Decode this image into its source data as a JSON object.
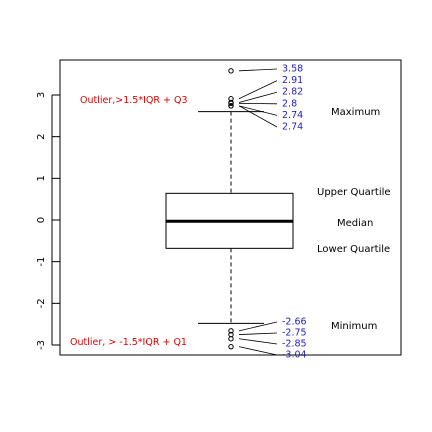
{
  "chart_data": {
    "type": "box",
    "title": "",
    "xlabel": "",
    "ylabel": "",
    "ylim": [
      -3.1,
      3.7
    ],
    "yticks": [
      -3,
      -2,
      -1,
      0,
      1,
      2,
      3
    ],
    "ytick_labels": [
      "-3",
      "-2",
      "-1",
      "0",
      "1",
      "2",
      "3"
    ],
    "box": {
      "q1": -0.68,
      "median": -0.03,
      "q3": 0.64,
      "whisker_low": -2.48,
      "whisker_high": 2.6
    },
    "upper_outliers": [
      3.58,
      2.91,
      2.82,
      2.8,
      2.74,
      2.74
    ],
    "upper_outlier_labels": [
      "3.58",
      "2.91",
      "2.82",
      "2.8",
      "2.74",
      "2.74"
    ],
    "lower_outliers": [
      -2.66,
      -2.75,
      -2.85,
      -3.04
    ],
    "lower_outlier_labels": [
      "-2.66",
      "-2.75",
      "-2.85",
      "-3.04"
    ],
    "annotations": {
      "upper_outlier_note": "Outlier,>1.5*IQR + Q3",
      "lower_outlier_note": "Outlier, > -1.5*IQR + Q1",
      "maximum": "Maximum",
      "upper_quartile": "Upper Quartile",
      "median": "Median",
      "lower_quartile": "Lower Quartile",
      "minimum": "Minimum"
    },
    "colors": {
      "outlier_note": "#e00000",
      "value_labels": "#1f1fc0",
      "lines": "#000000"
    }
  }
}
